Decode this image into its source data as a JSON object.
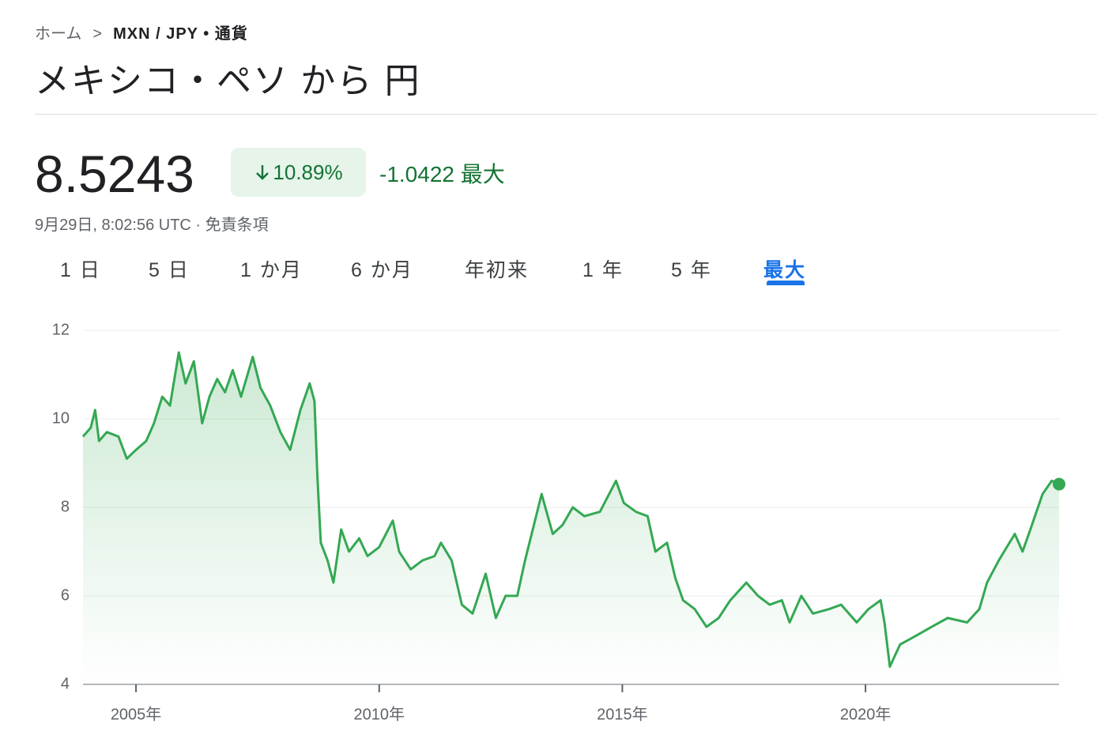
{
  "breadcrumb": {
    "home": "ホーム",
    "current": "MXN / JPY",
    "category": "通貨"
  },
  "title": "メキシコ・ペソ から 円",
  "price": "8.5243",
  "change_percent": "10.89%",
  "change": "-1.0422",
  "period": "最大",
  "timestamp": "9月29日, 8:02:56 UTC",
  "disclaimer": "免責条項",
  "tabs": [
    "1 日",
    "5 日",
    "1 か月",
    "6 か月",
    "年初来",
    "1 年",
    "5 年",
    "最大"
  ],
  "active_tab": 7,
  "chart_data": {
    "type": "line",
    "x": [
      2003.91,
      2004.07,
      2004.16,
      2004.24,
      2004.4,
      2004.64,
      2004.81,
      2005.0,
      2005.21,
      2005.37,
      2005.54,
      2005.7,
      2005.88,
      2006.02,
      2006.19,
      2006.36,
      2006.51,
      2006.67,
      2006.83,
      2006.99,
      2007.16,
      2007.4,
      2007.56,
      2007.76,
      2007.97,
      2008.17,
      2008.38,
      2008.57,
      2008.67,
      2008.73,
      2008.8,
      2008.94,
      2009.06,
      2009.22,
      2009.38,
      2009.59,
      2009.76,
      2010.0,
      2010.28,
      2010.41,
      2010.65,
      2010.89,
      2011.14,
      2011.27,
      2011.49,
      2011.7,
      2011.92,
      2012.19,
      2012.4,
      2012.6,
      2012.84,
      2013.0,
      2013.34,
      2013.57,
      2013.77,
      2013.98,
      2014.22,
      2014.54,
      2014.87,
      2015.03,
      2015.28,
      2015.52,
      2015.68,
      2015.92,
      2016.09,
      2016.25,
      2016.49,
      2016.73,
      2016.98,
      2017.22,
      2017.55,
      2017.79,
      2018.03,
      2018.28,
      2018.44,
      2018.68,
      2018.92,
      2019.25,
      2019.5,
      2019.82,
      2020.06,
      2020.31,
      2020.39,
      2020.5,
      2020.71,
      2021.04,
      2021.36,
      2021.69,
      2022.09,
      2022.34,
      2022.5,
      2022.74,
      2023.07,
      2023.23,
      2023.39,
      2023.64,
      2023.83,
      2023.98
    ],
    "values": [
      9.6,
      9.8,
      10.2,
      9.5,
      9.7,
      9.6,
      9.1,
      9.3,
      9.5,
      9.9,
      10.5,
      10.3,
      11.5,
      10.8,
      11.3,
      9.9,
      10.5,
      10.9,
      10.6,
      11.1,
      10.5,
      11.4,
      10.7,
      10.3,
      9.7,
      9.3,
      10.2,
      10.8,
      10.4,
      8.7,
      7.2,
      6.8,
      6.3,
      7.5,
      7.0,
      7.3,
      6.9,
      7.1,
      7.7,
      7.0,
      6.6,
      6.8,
      6.9,
      7.2,
      6.8,
      5.8,
      5.6,
      6.5,
      5.5,
      6.0,
      6.0,
      6.8,
      8.3,
      7.4,
      7.6,
      8.0,
      7.8,
      7.9,
      8.6,
      8.1,
      7.9,
      7.8,
      7.0,
      7.2,
      6.4,
      5.9,
      5.7,
      5.3,
      5.5,
      5.9,
      6.3,
      6.0,
      5.8,
      5.9,
      5.4,
      6.0,
      5.6,
      5.7,
      5.8,
      5.4,
      5.7,
      5.9,
      5.4,
      4.4,
      4.9,
      5.1,
      5.3,
      5.5,
      5.4,
      5.7,
      6.3,
      6.8,
      7.4,
      7.0,
      7.5,
      8.3,
      8.6,
      8.5243
    ],
    "color": "#34a853",
    "xlim": [
      2003.91,
      2023.98
    ],
    "ylim": [
      4,
      12
    ],
    "yticks": [
      4,
      6,
      8,
      10,
      12
    ],
    "xticks": [
      {
        "value": 2005,
        "label": "2005年"
      },
      {
        "value": 2010,
        "label": "2010年"
      },
      {
        "value": 2015,
        "label": "2015年"
      },
      {
        "value": 2020,
        "label": "2020年"
      }
    ],
    "grid": true
  }
}
